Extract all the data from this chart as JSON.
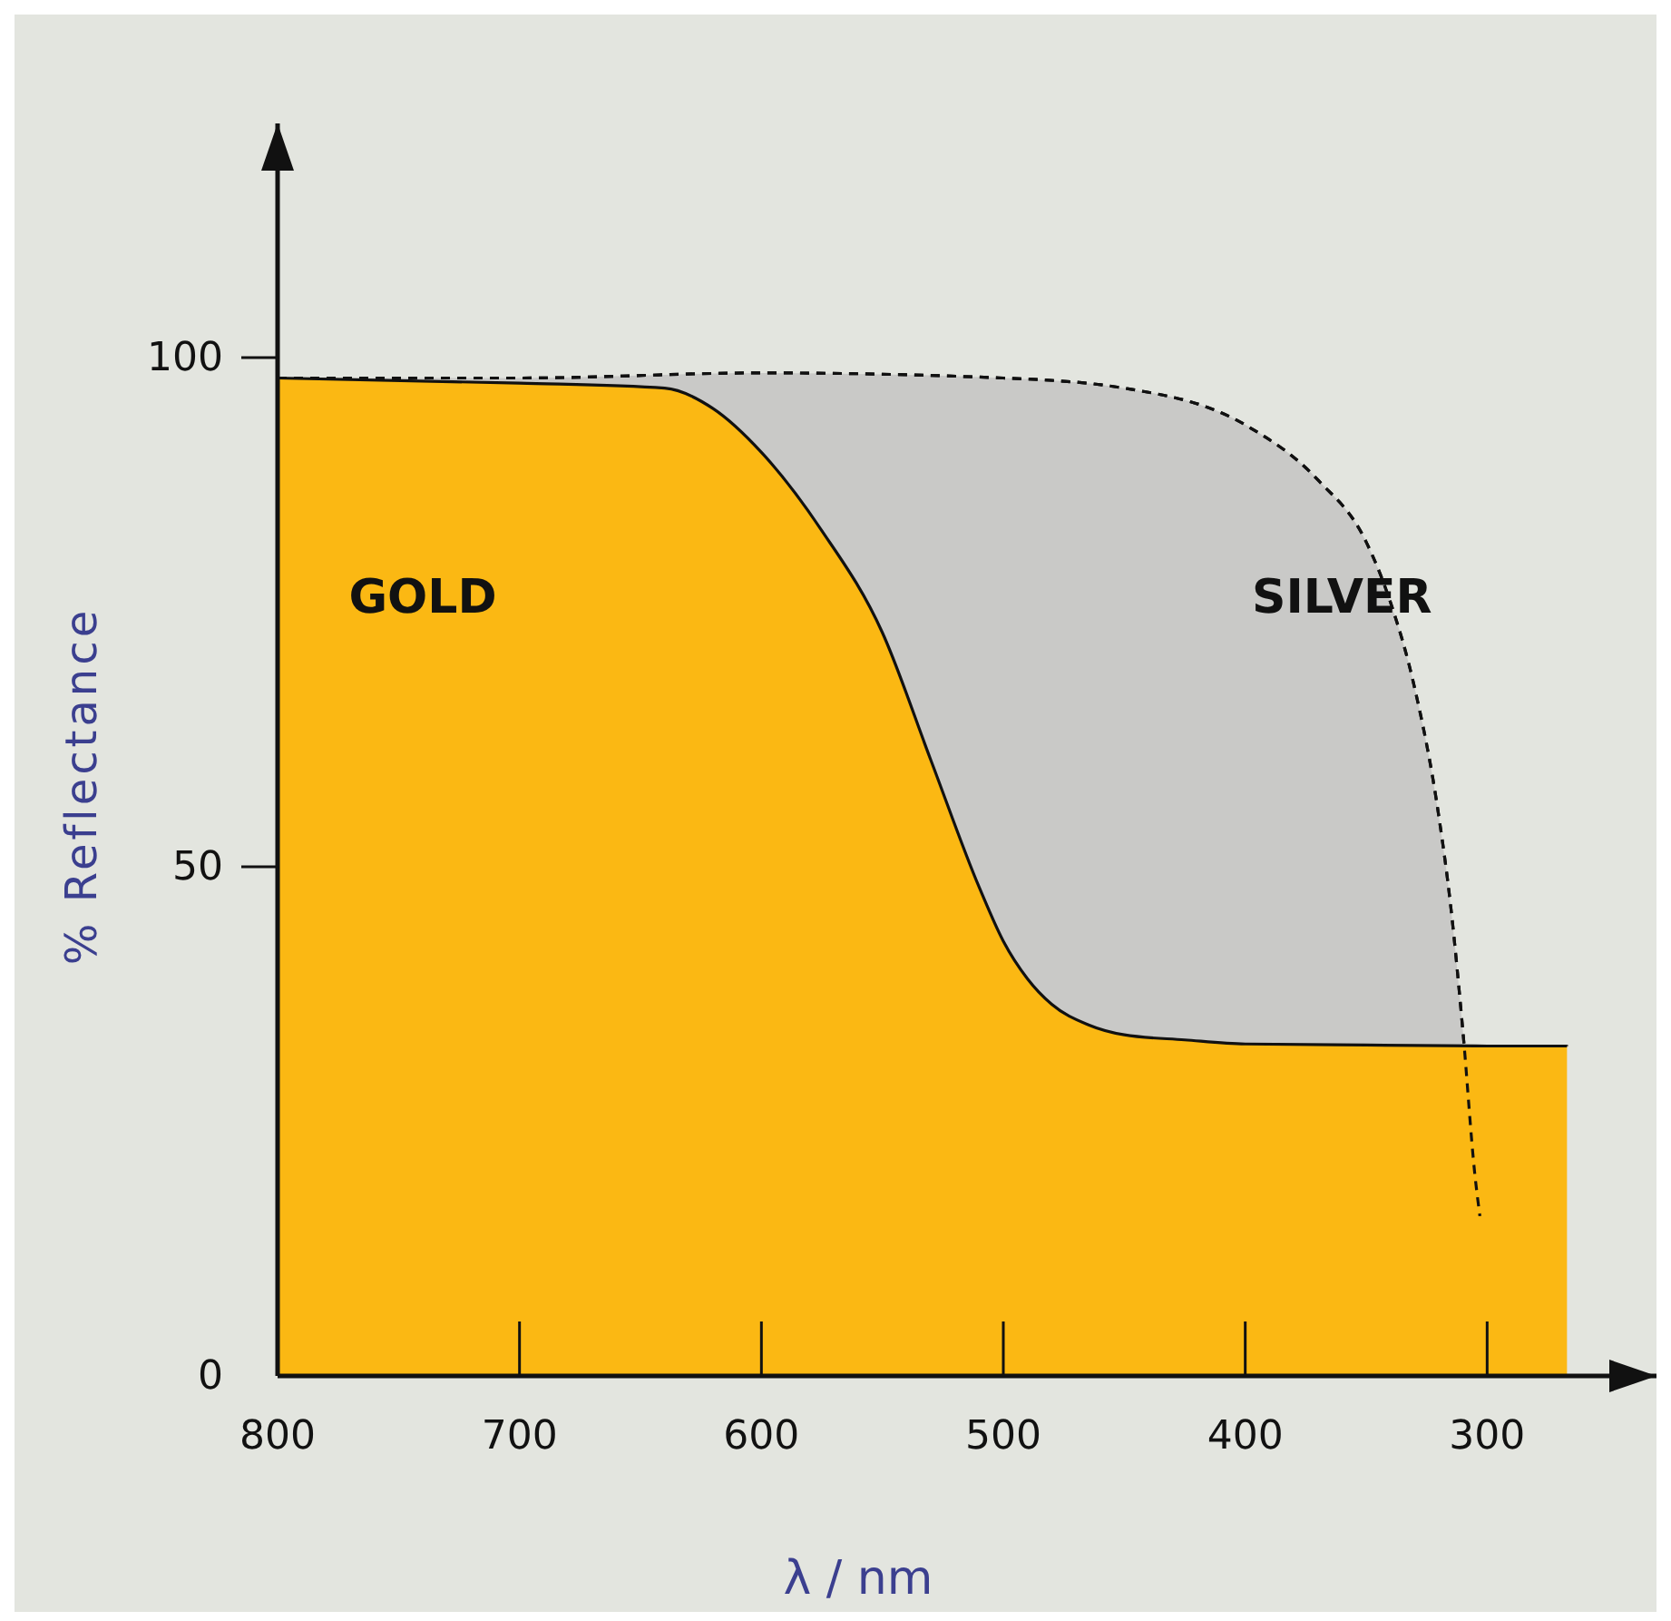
{
  "chart_data": {
    "type": "area",
    "xlabel": "λ / nm",
    "ylabel": "% Reflectance",
    "xlim": [
      800,
      230
    ],
    "xticks": [
      800,
      700,
      600,
      500,
      400,
      300
    ],
    "ylim": [
      0,
      123
    ],
    "yticks": [
      0,
      50,
      100
    ],
    "grid": false,
    "legend": false,
    "series": [
      {
        "name": "SILVER",
        "color": "#c9c9c7",
        "line_style": "dashed",
        "x": [
          800,
          700,
          600,
          500,
          450,
          400,
          370,
          350,
          340,
          330,
          320,
          315,
          310,
          305,
          303
        ],
        "values": [
          98,
          98,
          98.5,
          98,
          97,
          93.4,
          88,
          81.9,
          76,
          67.6,
          55,
          46,
          33.8,
          19.6,
          15.7
        ]
      },
      {
        "name": "GOLD",
        "color": "#fbb813",
        "line_style": "solid",
        "x": [
          800,
          700,
          640,
          620,
          600,
          575,
          550,
          530,
          510,
          500,
          490,
          480,
          465,
          450,
          425,
          400,
          350,
          300,
          267
        ],
        "values": [
          98,
          97.5,
          97,
          95,
          90.7,
          83,
          73,
          60.5,
          48,
          42.7,
          39,
          36.5,
          34.5,
          33.5,
          33,
          32.6,
          32.5,
          32.4,
          32.4
        ]
      }
    ]
  }
}
